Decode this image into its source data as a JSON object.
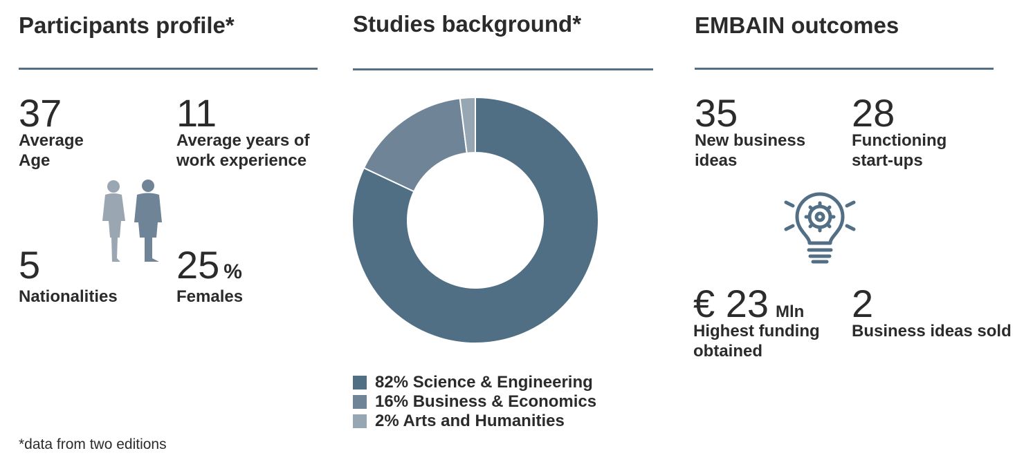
{
  "participants": {
    "title": "Participants profile*",
    "stats": [
      {
        "value": "37",
        "unit": "",
        "label": "Average\nAge"
      },
      {
        "value": "11",
        "unit": "",
        "label": "Average years of\nwork experience"
      },
      {
        "value": "5",
        "unit": "",
        "label": "Nationalities"
      },
      {
        "value": "25",
        "unit": "%",
        "label": "Females"
      }
    ]
  },
  "studies": {
    "title": "Studies background*"
  },
  "outcomes": {
    "title": "EMBAIN outcomes",
    "stats": [
      {
        "value": "35",
        "unit": "",
        "label": "New business\nideas"
      },
      {
        "value": "28",
        "unit": "",
        "label": "Functioning\nstart-ups"
      },
      {
        "value": "€ 23",
        "unit": "Mln",
        "label": "Highest funding\nobtained"
      },
      {
        "value": "2",
        "unit": "",
        "label": "Business ideas sold"
      }
    ]
  },
  "footnote": "*data from two editions",
  "colors": {
    "rule": "#526f85",
    "female_icon": "#9aa6b1",
    "male_icon": "#6f8497",
    "bulb_icon": "#526f85"
  },
  "chart_data": {
    "type": "pie",
    "title": "Studies background*",
    "categories": [
      "Science & Engineering",
      "Business & Economics",
      "Arts and Humanities"
    ],
    "values": [
      82,
      16,
      2
    ],
    "labels": [
      "82% Science & Engineering",
      "16% Business & Economics",
      "2% Arts and Humanities"
    ],
    "colors": [
      "#506f84",
      "#6f8597",
      "#97a6b3"
    ],
    "donut": true,
    "start_angle": "12 o'clock, clockwise",
    "legend": "bottom"
  }
}
